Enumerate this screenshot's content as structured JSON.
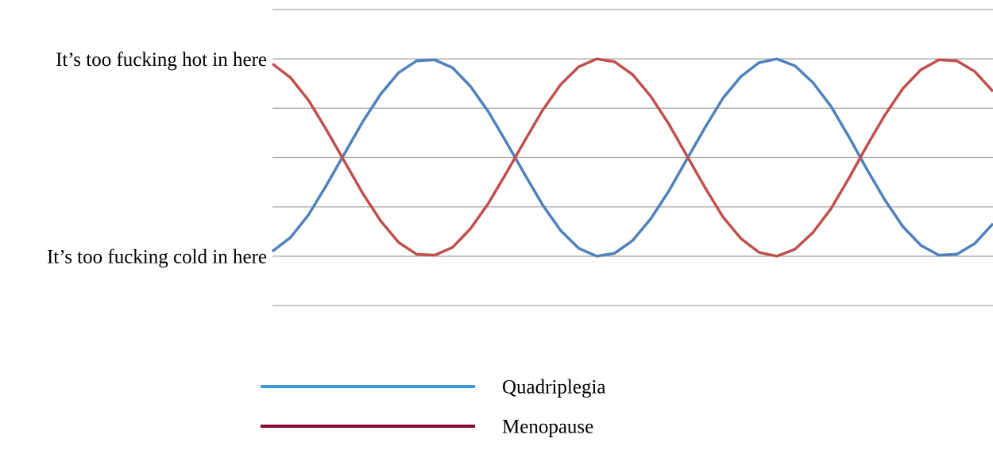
{
  "chart_data": {
    "type": "line",
    "yticks": [
      {
        "value": 1,
        "label": "It’s too fucking hot in here"
      },
      {
        "value": -1,
        "label": "It’s too fucking cold in here"
      }
    ],
    "ylim": [
      -1.5,
      1.5
    ],
    "grid_lines": [
      -1.5,
      -1,
      -0.5,
      0,
      0.5,
      1,
      1.5
    ],
    "grid": true,
    "xlim": [
      0,
      40
    ],
    "x": [
      0,
      1,
      2,
      3,
      4,
      5,
      6,
      7,
      8,
      9,
      10,
      11,
      12,
      13,
      14,
      15,
      16,
      17,
      18,
      19,
      20,
      21,
      22,
      23,
      24,
      25,
      26,
      27,
      28,
      29,
      30,
      31,
      32,
      33,
      34,
      35,
      36,
      37,
      38,
      39,
      40
    ],
    "legend_position": "bottom",
    "series": [
      {
        "name": "Quadriplegia",
        "color": "#4f81bd",
        "legend_color": "#3a9be2",
        "values": [
          -0.95,
          -0.81,
          -0.58,
          -0.28,
          0.04,
          0.36,
          0.64,
          0.86,
          0.98,
          0.99,
          0.91,
          0.72,
          0.46,
          0.15,
          -0.17,
          -0.48,
          -0.74,
          -0.92,
          -1.0,
          -0.97,
          -0.84,
          -0.62,
          -0.34,
          -0.02,
          0.3,
          0.6,
          0.82,
          0.96,
          1.0,
          0.93,
          0.76,
          0.52,
          0.21,
          -0.12,
          -0.43,
          -0.7,
          -0.89,
          -0.99,
          -0.98,
          -0.87,
          -0.67
        ]
      },
      {
        "name": "Menopause",
        "color": "#c0504d",
        "legend_color": "#8b0a3a",
        "values": [
          0.95,
          0.81,
          0.58,
          0.28,
          -0.04,
          -0.36,
          -0.64,
          -0.86,
          -0.98,
          -0.99,
          -0.91,
          -0.72,
          -0.46,
          -0.15,
          0.17,
          0.48,
          0.74,
          0.92,
          1.0,
          0.97,
          0.84,
          0.62,
          0.34,
          0.02,
          -0.3,
          -0.6,
          -0.82,
          -0.96,
          -1.0,
          -0.93,
          -0.76,
          -0.52,
          -0.21,
          0.12,
          0.43,
          0.7,
          0.89,
          0.99,
          0.98,
          0.87,
          0.67
        ]
      }
    ]
  }
}
